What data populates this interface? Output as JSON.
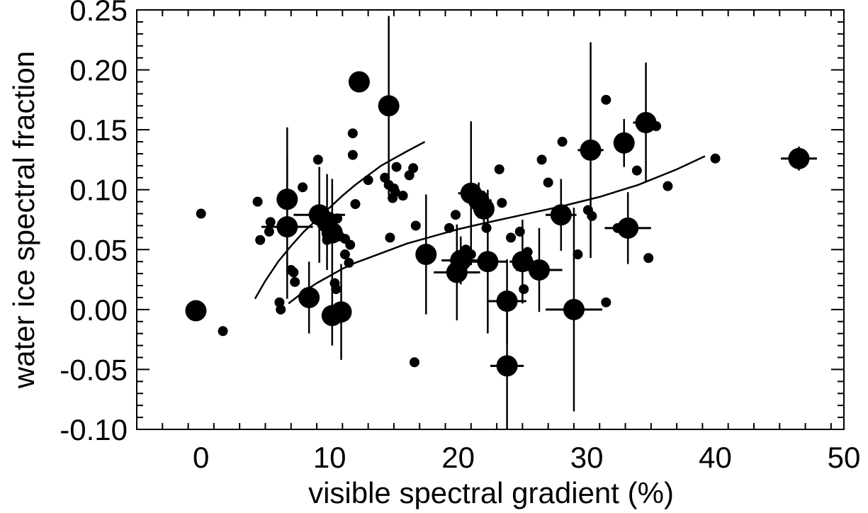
{
  "chart_data": {
    "type": "scatter",
    "title": "",
    "xlabel": "visible spectral gradient (%)",
    "ylabel": "water ice spectral fraction",
    "xlim": [
      -5,
      50
    ],
    "ylim": [
      -0.1,
      0.25
    ],
    "xticks": [
      0,
      10,
      20,
      30,
      40,
      50
    ],
    "xtick_labels": [
      "0",
      "10",
      "20",
      "30",
      "40",
      "50"
    ],
    "yticks": [
      -0.1,
      -0.05,
      0.0,
      0.05,
      0.1,
      0.15,
      0.2,
      0.25
    ],
    "ytick_labels": [
      "-0.10",
      "-0.05",
      "0.00",
      "0.05",
      "0.10",
      "0.15",
      "0.20",
      "0.25"
    ],
    "grid": false,
    "series": [
      {
        "marker": "large-circle-with-errorbars",
        "points": [
          {
            "x": -0.4,
            "y": -0.001,
            "xerr": 0.3,
            "yerr": 0.005
          },
          {
            "x": 6.7,
            "y": 0.092,
            "xerr": 0.5,
            "yerr": 0.06
          },
          {
            "x": 6.7,
            "y": 0.069,
            "xerr": 2.0,
            "yerr": 0.06
          },
          {
            "x": 8.4,
            "y": 0.01,
            "xerr": 0.8,
            "yerr": 0.03
          },
          {
            "x": 9.2,
            "y": 0.079,
            "xerr": 2.0,
            "yerr": 0.04
          },
          {
            "x": 9.8,
            "y": 0.073,
            "xerr": 1.0,
            "yerr": 0.04
          },
          {
            "x": 10.2,
            "y": 0.064,
            "xerr": 0.8,
            "yerr": 0.045
          },
          {
            "x": 10.2,
            "y": -0.005,
            "xerr": 0.8,
            "yerr": 0.025
          },
          {
            "x": 10.9,
            "y": -0.002,
            "xerr": 0.8,
            "yerr": 0.04
          },
          {
            "x": 12.3,
            "y": 0.19,
            "xerr": 0.3,
            "yerr": 0.006
          },
          {
            "x": 14.6,
            "y": 0.17,
            "xerr": 0.4,
            "yerr": 0.075
          },
          {
            "x": 17.5,
            "y": 0.046,
            "xerr": 0.6,
            "yerr": 0.05
          },
          {
            "x": 19.9,
            "y": 0.031,
            "xerr": 1.8,
            "yerr": 0.04
          },
          {
            "x": 20.2,
            "y": 0.041,
            "xerr": 1.5,
            "yerr": 0.02
          },
          {
            "x": 21.0,
            "y": 0.097,
            "xerr": 1.0,
            "yerr": 0.06
          },
          {
            "x": 21.6,
            "y": 0.091,
            "xerr": 1.0,
            "yerr": 0.015
          },
          {
            "x": 22.0,
            "y": 0.084,
            "xerr": 0.8,
            "yerr": 0.015
          },
          {
            "x": 22.3,
            "y": 0.04,
            "xerr": 1.5,
            "yerr": 0.06
          },
          {
            "x": 23.8,
            "y": 0.007,
            "xerr": 1.5,
            "yerr": 0.035
          },
          {
            "x": 23.8,
            "y": -0.047,
            "xerr": 1.3,
            "yerr": 0.06
          },
          {
            "x": 25.0,
            "y": 0.04,
            "xerr": 1.0,
            "yerr": 0.035
          },
          {
            "x": 26.3,
            "y": 0.033,
            "xerr": 1.8,
            "yerr": 0.035
          },
          {
            "x": 28.0,
            "y": 0.079,
            "xerr": 1.2,
            "yerr": 0.03
          },
          {
            "x": 29.0,
            "y": 0.0,
            "xerr": 2.2,
            "yerr": 0.085
          },
          {
            "x": 30.3,
            "y": 0.133,
            "xerr": 1.0,
            "yerr": 0.09
          },
          {
            "x": 32.9,
            "y": 0.139,
            "xerr": 0.8,
            "yerr": 0.02
          },
          {
            "x": 33.2,
            "y": 0.068,
            "xerr": 1.8,
            "yerr": 0.03
          },
          {
            "x": 34.6,
            "y": 0.156,
            "xerr": 1.0,
            "yerr": 0.05
          },
          {
            "x": 46.5,
            "y": 0.126,
            "xerr": 1.4,
            "yerr": 0.01
          }
        ]
      },
      {
        "marker": "small-circle",
        "points": [
          {
            "x": 0.0,
            "y": 0.08
          },
          {
            "x": 1.7,
            "y": -0.018
          },
          {
            "x": 4.4,
            "y": 0.09
          },
          {
            "x": 4.6,
            "y": 0.058
          },
          {
            "x": 5.3,
            "y": 0.065
          },
          {
            "x": 5.4,
            "y": 0.073
          },
          {
            "x": 6.1,
            "y": 0.006
          },
          {
            "x": 6.2,
            "y": 0.0
          },
          {
            "x": 7.0,
            "y": 0.033
          },
          {
            "x": 7.2,
            "y": 0.031
          },
          {
            "x": 7.3,
            "y": 0.023
          },
          {
            "x": 7.9,
            "y": 0.102
          },
          {
            "x": 9.1,
            "y": 0.125
          },
          {
            "x": 9.8,
            "y": 0.058
          },
          {
            "x": 10.4,
            "y": 0.022
          },
          {
            "x": 10.5,
            "y": 0.017
          },
          {
            "x": 10.6,
            "y": 0.076
          },
          {
            "x": 10.8,
            "y": 0.061
          },
          {
            "x": 11.2,
            "y": 0.046
          },
          {
            "x": 11.2,
            "y": 0.059
          },
          {
            "x": 11.5,
            "y": 0.039
          },
          {
            "x": 11.6,
            "y": 0.054
          },
          {
            "x": 11.8,
            "y": 0.129
          },
          {
            "x": 11.8,
            "y": 0.147
          },
          {
            "x": 12.0,
            "y": 0.088
          },
          {
            "x": 13.0,
            "y": 0.108
          },
          {
            "x": 14.3,
            "y": 0.11
          },
          {
            "x": 14.6,
            "y": 0.104
          },
          {
            "x": 14.7,
            "y": 0.06
          },
          {
            "x": 14.9,
            "y": 0.093
          },
          {
            "x": 15.0,
            "y": 0.101
          },
          {
            "x": 15.1,
            "y": 0.098
          },
          {
            "x": 15.2,
            "y": 0.119
          },
          {
            "x": 15.7,
            "y": 0.095
          },
          {
            "x": 16.2,
            "y": 0.112
          },
          {
            "x": 16.5,
            "y": 0.118
          },
          {
            "x": 16.6,
            "y": -0.044
          },
          {
            "x": 16.7,
            "y": 0.07
          },
          {
            "x": 19.3,
            "y": 0.068
          },
          {
            "x": 19.8,
            "y": 0.079
          },
          {
            "x": 20.6,
            "y": 0.05
          },
          {
            "x": 21.0,
            "y": 0.046
          },
          {
            "x": 22.2,
            "y": 0.068
          },
          {
            "x": 23.2,
            "y": 0.117
          },
          {
            "x": 23.4,
            "y": 0.089
          },
          {
            "x": 24.1,
            "y": 0.06
          },
          {
            "x": 24.8,
            "y": 0.065
          },
          {
            "x": 25.1,
            "y": 0.017
          },
          {
            "x": 25.4,
            "y": 0.048
          },
          {
            "x": 26.5,
            "y": 0.125
          },
          {
            "x": 27.0,
            "y": 0.106
          },
          {
            "x": 28.1,
            "y": 0.14
          },
          {
            "x": 29.3,
            "y": 0.046
          },
          {
            "x": 30.1,
            "y": 0.083
          },
          {
            "x": 30.4,
            "y": 0.078
          },
          {
            "x": 31.5,
            "y": 0.175
          },
          {
            "x": 31.5,
            "y": 0.006
          },
          {
            "x": 32.4,
            "y": 0.068
          },
          {
            "x": 33.9,
            "y": 0.116
          },
          {
            "x": 34.8,
            "y": 0.043
          },
          {
            "x": 35.4,
            "y": 0.153
          },
          {
            "x": 36.3,
            "y": 0.103
          },
          {
            "x": 40.0,
            "y": 0.126
          }
        ]
      }
    ],
    "fit_curves": [
      {
        "x": [
          4.2,
          5.0,
          6.0,
          7.0,
          8.0,
          9.0,
          10.0,
          11.0,
          12.0,
          13.0,
          14.0,
          15.0,
          16.0,
          17.4
        ],
        "y": [
          0.009,
          0.024,
          0.04,
          0.053,
          0.065,
          0.075,
          0.085,
          0.095,
          0.104,
          0.112,
          0.12,
          0.126,
          0.132,
          0.14
        ]
      },
      {
        "x": [
          6.8,
          8.0,
          9.0,
          10.0,
          11.0,
          12.0,
          14.0,
          16.0,
          18.0,
          20.0,
          22.0,
          25.0,
          28.0,
          31.0,
          34.0,
          37.0,
          39.2
        ],
        "y": [
          0.005,
          0.015,
          0.022,
          0.028,
          0.034,
          0.039,
          0.047,
          0.055,
          0.061,
          0.067,
          0.072,
          0.079,
          0.086,
          0.094,
          0.104,
          0.117,
          0.128
        ]
      }
    ]
  }
}
